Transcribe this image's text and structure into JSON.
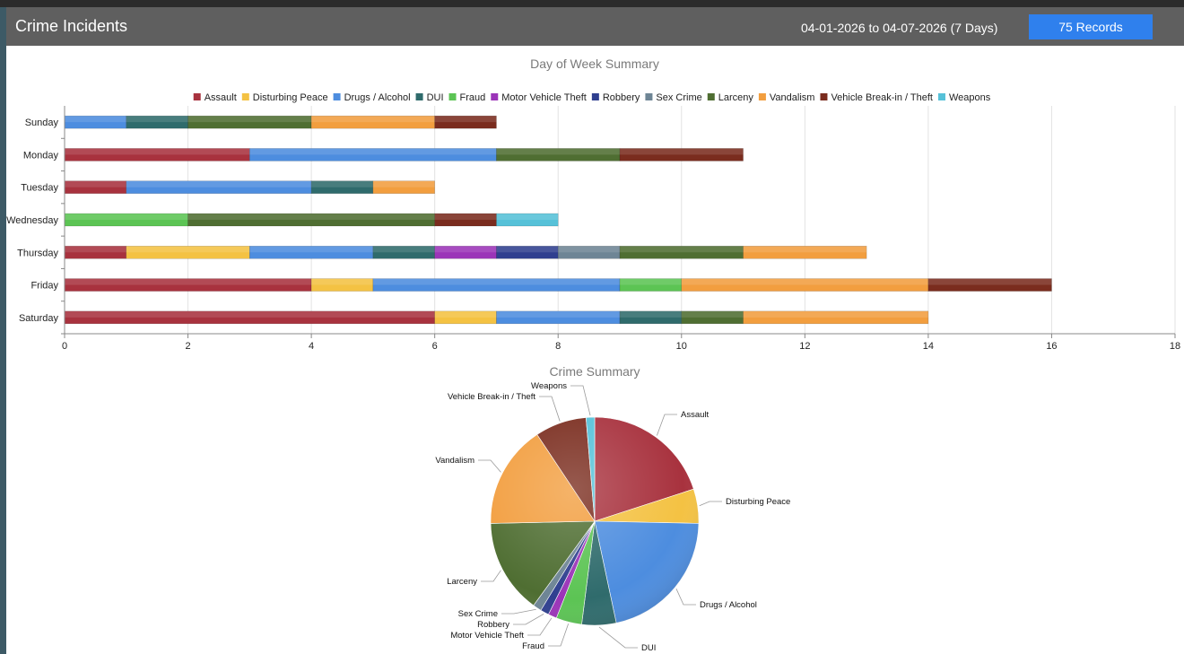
{
  "header": {
    "title": "Crime Incidents",
    "date_range": "04-01-2026 to 04-07-2026 (7 Days)",
    "records_label": "75 Records"
  },
  "chart_data": [
    {
      "type": "bar",
      "orientation": "horizontal",
      "stacked": true,
      "title": "Day of Week Summary",
      "categories": [
        "Sunday",
        "Monday",
        "Tuesday",
        "Wednesday",
        "Thursday",
        "Friday",
        "Saturday"
      ],
      "xlim": [
        0,
        18
      ],
      "xticks": [
        0,
        2,
        4,
        6,
        8,
        10,
        12,
        14,
        16,
        18
      ],
      "legend": "top",
      "grid": true,
      "series": [
        {
          "name": "Assault",
          "color": "#a8323e",
          "values": [
            0,
            3,
            1,
            0,
            1,
            4,
            6
          ]
        },
        {
          "name": "Disturbing Peace",
          "color": "#f4c243",
          "values": [
            0,
            0,
            0,
            0,
            2,
            1,
            1
          ]
        },
        {
          "name": "Drugs / Alcohol",
          "color": "#4d8ddf",
          "values": [
            1,
            4,
            3,
            0,
            2,
            4,
            2
          ]
        },
        {
          "name": "DUI",
          "color": "#2f6b6c",
          "values": [
            1,
            0,
            1,
            0,
            1,
            0,
            1
          ]
        },
        {
          "name": "Fraud",
          "color": "#5cc454",
          "values": [
            0,
            0,
            0,
            2,
            0,
            1,
            0
          ]
        },
        {
          "name": "Motor Vehicle Theft",
          "color": "#9b34b8",
          "values": [
            0,
            0,
            0,
            0,
            1,
            0,
            0
          ]
        },
        {
          "name": "Robbery",
          "color": "#2f3f8f",
          "values": [
            0,
            0,
            0,
            0,
            1,
            0,
            0
          ]
        },
        {
          "name": "Sex Crime",
          "color": "#6e8595",
          "values": [
            0,
            0,
            0,
            0,
            1,
            0,
            0
          ]
        },
        {
          "name": "Larceny",
          "color": "#4f6e32",
          "values": [
            2,
            2,
            0,
            4,
            2,
            0,
            1
          ]
        },
        {
          "name": "Vandalism",
          "color": "#f29e3f",
          "values": [
            2,
            0,
            1,
            0,
            2,
            4,
            3
          ]
        },
        {
          "name": "Vehicle Break-in / Theft",
          "color": "#7a2c1e",
          "values": [
            1,
            2,
            0,
            1,
            0,
            2,
            0
          ]
        },
        {
          "name": "Weapons",
          "color": "#56c1d8",
          "values": [
            0,
            0,
            0,
            1,
            0,
            0,
            0
          ]
        }
      ]
    },
    {
      "type": "pie",
      "title": "Crime Summary",
      "slices": [
        {
          "label": "Assault",
          "value": 15,
          "color": "#a8323e"
        },
        {
          "label": "Disturbing Peace",
          "value": 4,
          "color": "#f4c243"
        },
        {
          "label": "Drugs / Alcohol",
          "value": 16,
          "color": "#4d8ddf"
        },
        {
          "label": "DUI",
          "value": 4,
          "color": "#2f6b6c"
        },
        {
          "label": "Fraud",
          "value": 3,
          "color": "#5cc454"
        },
        {
          "label": "Motor Vehicle Theft",
          "value": 1,
          "color": "#9b34b8"
        },
        {
          "label": "Robbery",
          "value": 1,
          "color": "#2f3f8f"
        },
        {
          "label": "Sex Crime",
          "value": 1,
          "color": "#6e8595"
        },
        {
          "label": "Larceny",
          "value": 11,
          "color": "#4f6e32"
        },
        {
          "label": "Vandalism",
          "value": 12,
          "color": "#f29e3f"
        },
        {
          "label": "Vehicle Break-in / Theft",
          "value": 6,
          "color": "#7a2c1e"
        },
        {
          "label": "Weapons",
          "value": 1,
          "color": "#56c1d8"
        }
      ]
    }
  ]
}
